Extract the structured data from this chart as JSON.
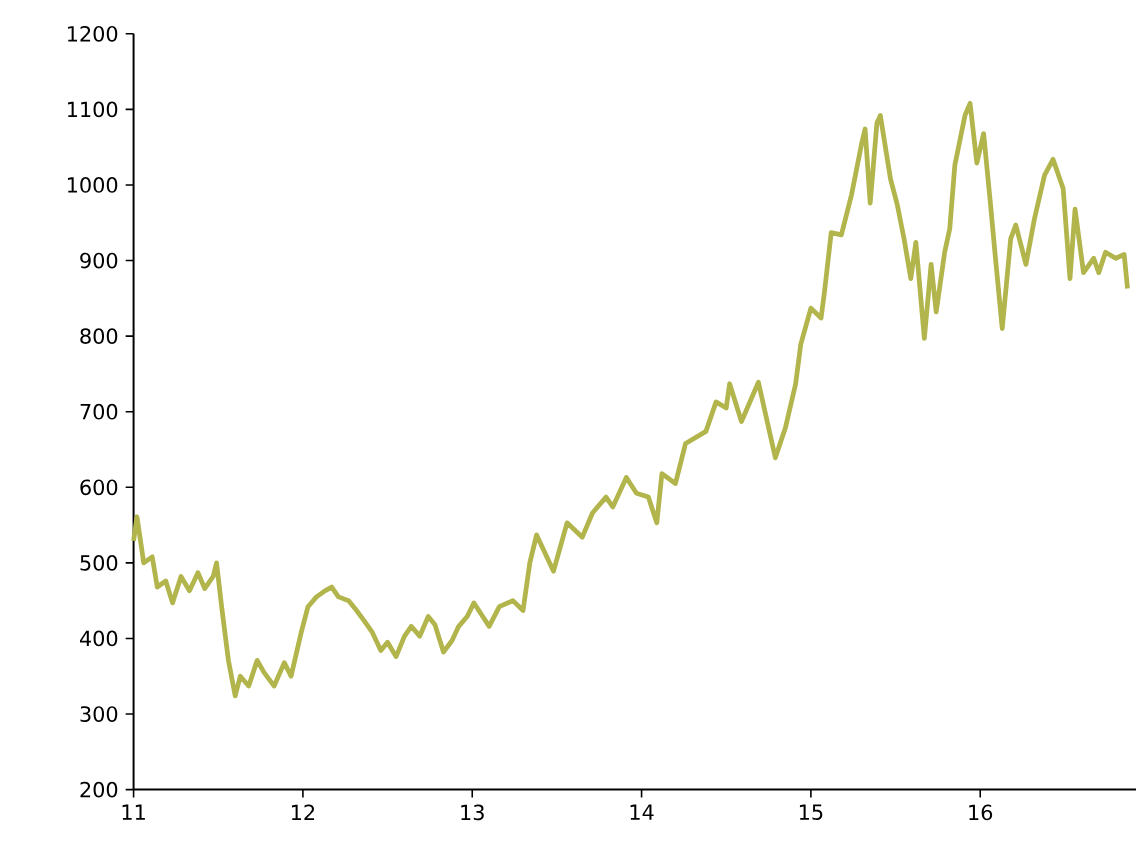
{
  "chart_data": {
    "type": "line",
    "color": "#b2b44c",
    "marker": "none",
    "line_style": "solid",
    "grid": false,
    "x": [
      11.0,
      11.02,
      11.06,
      11.11,
      11.14,
      11.19,
      11.23,
      11.28,
      11.33,
      11.38,
      11.42,
      11.47,
      11.49,
      11.52,
      11.56,
      11.6,
      11.63,
      11.68,
      11.73,
      11.77,
      11.83,
      11.89,
      11.93,
      11.99,
      12.03,
      12.08,
      12.13,
      12.17,
      12.21,
      12.27,
      12.31,
      12.36,
      12.41,
      12.46,
      12.5,
      12.55,
      12.6,
      12.64,
      12.69,
      12.74,
      12.78,
      12.83,
      12.88,
      12.92,
      12.97,
      13.01,
      13.1,
      13.16,
      13.24,
      13.3,
      13.34,
      13.38,
      13.48,
      13.56,
      13.65,
      13.71,
      13.79,
      13.83,
      13.91,
      13.97,
      14.04,
      14.09,
      14.12,
      14.2,
      14.26,
      14.32,
      14.38,
      14.44,
      14.5,
      14.52,
      14.59,
      14.69,
      14.79,
      14.85,
      14.91,
      14.94,
      15.0,
      15.06,
      15.08,
      15.12,
      15.18,
      15.24,
      15.3,
      15.32,
      15.35,
      15.39,
      15.41,
      15.47,
      15.51,
      15.55,
      15.59,
      15.62,
      15.67,
      15.71,
      15.74,
      15.79,
      15.82,
      15.85,
      15.91,
      15.94,
      15.98,
      16.02,
      16.06,
      16.09,
      16.13,
      16.18,
      16.21,
      16.27,
      16.32,
      16.38,
      16.43,
      16.49,
      16.53,
      16.56,
      16.61,
      16.67,
      16.7,
      16.74,
      16.8,
      16.85,
      16.87
    ],
    "values": [
      529,
      561,
      500,
      508,
      468,
      476,
      447,
      482,
      463,
      487,
      466,
      482,
      500,
      442,
      371,
      324,
      350,
      337,
      371,
      355,
      337,
      368,
      350,
      408,
      442,
      455,
      463,
      468,
      455,
      450,
      439,
      424,
      408,
      384,
      395,
      376,
      403,
      416,
      403,
      429,
      418,
      382,
      397,
      416,
      429,
      447,
      416,
      442,
      450,
      437,
      500,
      537,
      489,
      553,
      534,
      566,
      587,
      574,
      613,
      592,
      587,
      553,
      618,
      605,
      658,
      666,
      674,
      713,
      705,
      737,
      687,
      739,
      639,
      679,
      737,
      789,
      837,
      824,
      858,
      937,
      934,
      987,
      1055,
      1074,
      976,
      1082,
      1092,
      1008,
      974,
      929,
      876,
      924,
      797,
      895,
      832,
      911,
      942,
      1026,
      1092,
      1108,
      1029,
      1068,
      976,
      903,
      810,
      929,
      947,
      895,
      955,
      1013,
      1034,
      995,
      876,
      968,
      884,
      903,
      884,
      911,
      903,
      908,
      863
    ],
    "xlim": [
      11,
      16.92
    ],
    "ylim": [
      200,
      1200
    ],
    "xticks": [
      11,
      12,
      13,
      14,
      15,
      16
    ],
    "yticks": [
      200,
      300,
      400,
      500,
      600,
      700,
      800,
      900,
      1000,
      1100,
      1200
    ]
  }
}
